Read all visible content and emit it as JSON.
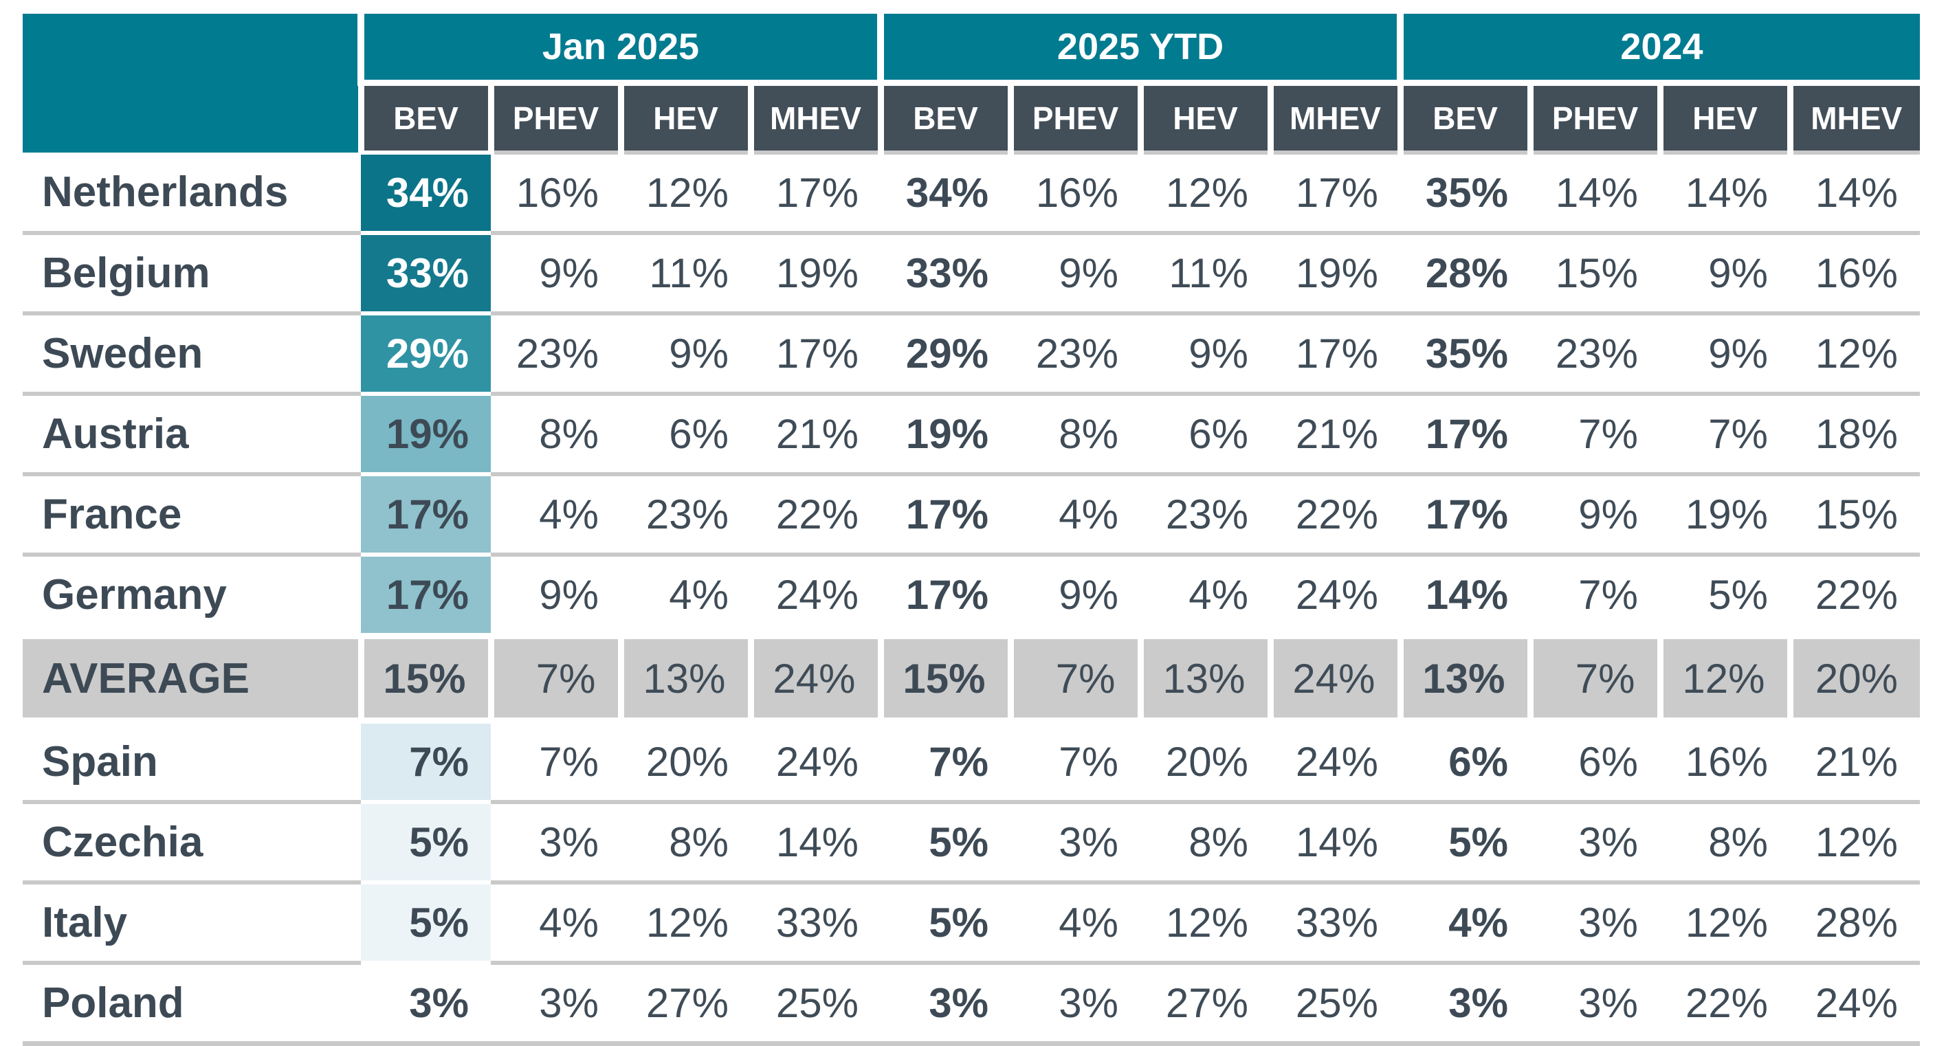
{
  "colors": {
    "header_teal": "#007B90",
    "header_dark": "#424E58",
    "text_dark": "#3D4A55",
    "row_separator": "#C9C9C9",
    "average_row_bg": "#CBCBCB",
    "bev_heat_high": "#0B7488",
    "bev_heat_low": "#EDF4F8"
  },
  "chart_data": {
    "type": "table",
    "column_groups": [
      "Jan 2025",
      "2025 YTD",
      "2024"
    ],
    "sub_columns": [
      "BEV",
      "PHEV",
      "HEV",
      "MHEV"
    ],
    "layout_hints": {
      "heatmap_column": "Jan 2025 BEV",
      "grid": "gray row separators, white gaps between header cells",
      "bev_values_bold": true
    },
    "rows": [
      {
        "country": "Netherlands",
        "average": false,
        "bev_bg": "#0B7488",
        "bev_fg": "#FFFFFF",
        "cells": [
          "34%",
          "16%",
          "12%",
          "17%",
          "34%",
          "16%",
          "12%",
          "17%",
          "35%",
          "14%",
          "14%",
          "14%"
        ]
      },
      {
        "country": "Belgium",
        "average": false,
        "bev_bg": "#15798D",
        "bev_fg": "#FFFFFF",
        "cells": [
          "33%",
          "9%",
          "11%",
          "19%",
          "33%",
          "9%",
          "11%",
          "19%",
          "28%",
          "15%",
          "9%",
          "16%"
        ]
      },
      {
        "country": "Sweden",
        "average": false,
        "bev_bg": "#2F93A4",
        "bev_fg": "#FFFFFF",
        "cells": [
          "29%",
          "23%",
          "9%",
          "17%",
          "29%",
          "23%",
          "9%",
          "17%",
          "35%",
          "23%",
          "9%",
          "12%"
        ]
      },
      {
        "country": "Austria",
        "average": false,
        "bev_bg": "#79B8C4",
        "bev_fg": "#3D4A55",
        "cells": [
          "19%",
          "8%",
          "6%",
          "21%",
          "19%",
          "8%",
          "6%",
          "21%",
          "17%",
          "7%",
          "7%",
          "18%"
        ]
      },
      {
        "country": "France",
        "average": false,
        "bev_bg": "#8FC2CC",
        "bev_fg": "#3D4A55",
        "cells": [
          "17%",
          "4%",
          "23%",
          "22%",
          "17%",
          "4%",
          "23%",
          "22%",
          "17%",
          "9%",
          "19%",
          "15%"
        ]
      },
      {
        "country": "Germany",
        "average": false,
        "bev_bg": "#8FC2CC",
        "bev_fg": "#3D4A55",
        "cells": [
          "17%",
          "9%",
          "4%",
          "24%",
          "17%",
          "9%",
          "4%",
          "24%",
          "14%",
          "7%",
          "5%",
          "22%"
        ]
      },
      {
        "country": "AVERAGE",
        "average": true,
        "bev_bg": null,
        "bev_fg": "#3D4A55",
        "cells": [
          "15%",
          "7%",
          "13%",
          "24%",
          "15%",
          "7%",
          "13%",
          "24%",
          "13%",
          "7%",
          "12%",
          "20%"
        ]
      },
      {
        "country": "Spain",
        "average": false,
        "bev_bg": "#DCEBF2",
        "bev_fg": "#3D4A55",
        "cells": [
          "7%",
          "7%",
          "20%",
          "24%",
          "7%",
          "7%",
          "20%",
          "24%",
          "6%",
          "6%",
          "16%",
          "21%"
        ]
      },
      {
        "country": "Czechia",
        "average": false,
        "bev_bg": "#EBF3F7",
        "bev_fg": "#3D4A55",
        "cells": [
          "5%",
          "3%",
          "8%",
          "14%",
          "5%",
          "3%",
          "8%",
          "14%",
          "5%",
          "3%",
          "8%",
          "12%"
        ]
      },
      {
        "country": "Italy",
        "average": false,
        "bev_bg": "#EDF4F8",
        "bev_fg": "#3D4A55",
        "cells": [
          "5%",
          "4%",
          "12%",
          "33%",
          "5%",
          "4%",
          "12%",
          "33%",
          "4%",
          "3%",
          "12%",
          "28%"
        ]
      },
      {
        "country": "Poland",
        "average": false,
        "bev_bg": null,
        "bev_fg": "#3D4A55",
        "cells": [
          "3%",
          "3%",
          "27%",
          "25%",
          "3%",
          "3%",
          "27%",
          "25%",
          "3%",
          "3%",
          "22%",
          "24%"
        ]
      }
    ]
  }
}
